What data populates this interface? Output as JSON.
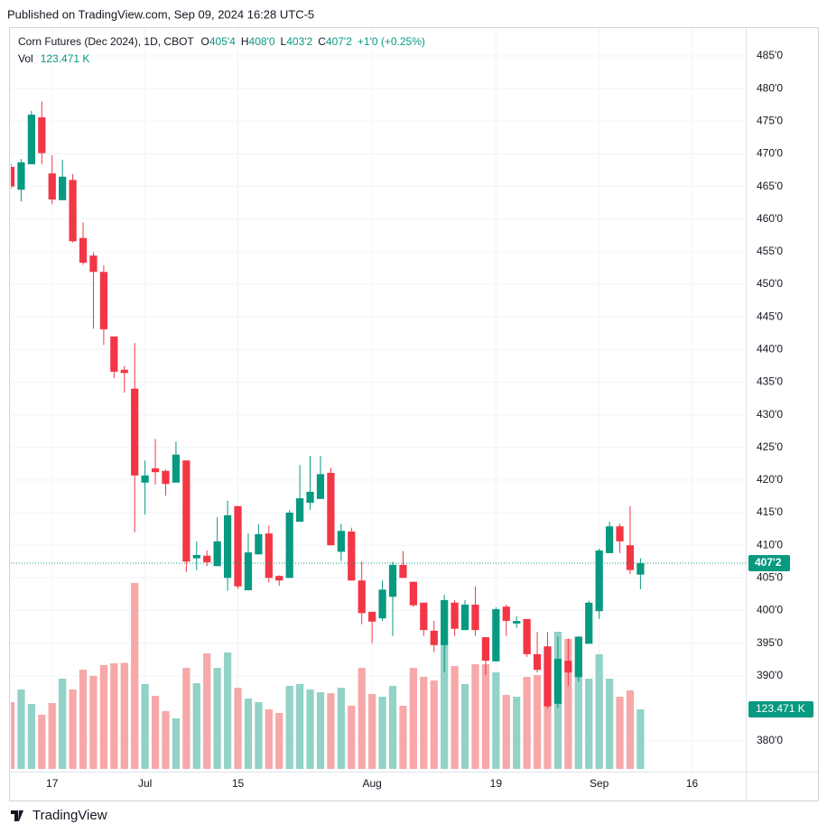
{
  "header": {
    "published": "Published on TradingView.com, Sep 09, 2024 16:28 UTC-5"
  },
  "footer": {
    "brand": "TradingView"
  },
  "chart_data": {
    "type": "candlestick",
    "title": "Corn Futures (Dec 2024), 1D, CBOT",
    "legend": {
      "o": "O",
      "open": "405'4",
      "h": "H",
      "high": "408'0",
      "l": "L",
      "low": "403'2",
      "c": "C",
      "close": "407'2",
      "change": "+1'0 (+0.25%)",
      "vol": "Vol",
      "volume": "123.471 K"
    },
    "up_color": "#089981",
    "down_color": "#f23645",
    "volume_up_color": "#92d2c7",
    "volume_down_color": "#f7a8a8",
    "open": [
      468.0,
      464.5,
      468.4,
      475.6,
      467.0,
      462.9,
      466.0,
      457.1,
      454.4,
      451.9,
      442.0,
      436.9,
      434.0,
      419.6,
      421.8,
      421.4,
      419.6,
      423.0,
      408.0,
      408.4,
      406.8,
      405.0,
      416.0,
      403.1,
      408.6,
      411.8,
      405.3,
      405.0,
      413.6,
      416.5,
      417.1,
      421.1,
      409.0,
      412.1,
      404.6,
      399.8,
      398.8,
      402.1,
      407.0,
      404.4,
      401.2,
      396.9,
      394.7,
      401.2,
      397.0,
      400.9,
      395.9,
      392.2,
      400.6,
      398.0,
      398.7,
      393.3,
      394.5,
      385.7,
      392.3,
      389.8,
      394.9,
      399.9,
      408.8,
      412.9,
      410.0,
      405.5
    ],
    "high": [
      468.5,
      469.2,
      476.6,
      478.0,
      469.8,
      469.1,
      466.9,
      459.5,
      454.9,
      452.9,
      442.0,
      437.5,
      441.0,
      423.0,
      426.3,
      421.6,
      425.9,
      423.0,
      410.6,
      409.2,
      414.3,
      416.8,
      416.0,
      411.8,
      413.2,
      413.0,
      405.4,
      415.4,
      422.3,
      423.7,
      423.7,
      421.9,
      413.3,
      412.7,
      407.5,
      399.8,
      404.6,
      407.5,
      409.1,
      404.4,
      401.2,
      398.4,
      402.4,
      401.6,
      401.6,
      403.7,
      395.9,
      400.5,
      400.9,
      399.1,
      398.7,
      396.7,
      396.7,
      396.0,
      395.7,
      396.0,
      401.5,
      409.5,
      413.6,
      413.3,
      416.0,
      408.0
    ],
    "low": [
      464.6,
      462.7,
      468.4,
      468.4,
      462.3,
      462.9,
      456.4,
      453.0,
      443.2,
      440.7,
      435.6,
      433.4,
      412.0,
      414.7,
      419.3,
      417.6,
      419.6,
      405.9,
      406.2,
      406.8,
      406.8,
      403.0,
      403.3,
      403.1,
      408.6,
      404.3,
      403.8,
      405.0,
      413.6,
      415.4,
      417.1,
      410.0,
      407.6,
      404.6,
      397.9,
      395.0,
      398.4,
      396.1,
      405.0,
      400.6,
      396.1,
      393.6,
      390.5,
      396.1,
      397.0,
      396.1,
      390.1,
      392.2,
      396.1,
      397.3,
      392.9,
      390.5,
      385.0,
      385.0,
      388.4,
      389.1,
      394.9,
      398.7,
      408.8,
      408.8,
      405.6,
      403.25
    ],
    "close": [
      465.0,
      468.7,
      476.0,
      470.1,
      463.0,
      466.5,
      456.6,
      453.3,
      451.9,
      443.1,
      436.6,
      436.4,
      420.7,
      420.7,
      421.2,
      419.4,
      423.9,
      407.5,
      408.5,
      407.4,
      410.6,
      414.6,
      403.7,
      408.9,
      411.7,
      405.0,
      404.6,
      415.0,
      417.2,
      418.2,
      420.9,
      410.0,
      412.2,
      404.6,
      399.6,
      398.3,
      403.2,
      407.0,
      405.0,
      400.8,
      397.0,
      394.7,
      401.6,
      397.2,
      400.9,
      397.0,
      392.3,
      400.2,
      398.4,
      398.4,
      393.3,
      390.9,
      385.3,
      392.6,
      390.5,
      396.0,
      401.2,
      409.2,
      412.9,
      410.6,
      406.2,
      407.25
    ],
    "volume": [
      138.4,
      164.6,
      134.7,
      112.3,
      136.6,
      187.1,
      164.6,
      205.8,
      192.7,
      215.2,
      218.9,
      220.0,
      385.4,
      175.9,
      151.5,
      119.7,
      104.8,
      209.5,
      177.7,
      239.5,
      209.5,
      241.3,
      168.4,
      145.9,
      138.4,
      123.5,
      116.0,
      172.1,
      175.9,
      164.6,
      159.0,
      157.2,
      168.4,
      131.0,
      209.5,
      155.3,
      149.7,
      172.1,
      131.0,
      209.5,
      190.8,
      183.3,
      258.2,
      213.3,
      175.9,
      217.0,
      217.0,
      200.2,
      153.4,
      149.7,
      190.8,
      194.6,
      250.7,
      284.4,
      269.4,
      222.6,
      187.1,
      237.6,
      187.1,
      149.7,
      162.8,
      123.471
    ],
    "last_price": {
      "value": 407.25,
      "label": "407'2"
    },
    "last_volume": {
      "value": 123.471,
      "label": "123.471 K"
    },
    "xlim": [
      0,
      71.2
    ],
    "xticks": [
      {
        "value": 4,
        "label": "17"
      },
      {
        "value": 13,
        "label": "Jul"
      },
      {
        "value": 22,
        "label": "15"
      },
      {
        "value": 35,
        "label": "Aug"
      },
      {
        "value": 47,
        "label": "19"
      },
      {
        "value": 57,
        "label": "Sep"
      },
      {
        "value": 66,
        "label": "16"
      }
    ],
    "ylim": [
      375.3,
      489.43
    ],
    "yticks": [
      {
        "value": 485,
        "label": "485'0"
      },
      {
        "value": 480,
        "label": "480'0"
      },
      {
        "value": 475,
        "label": "475'0"
      },
      {
        "value": 470,
        "label": "470'0"
      },
      {
        "value": 465,
        "label": "465'0"
      },
      {
        "value": 460,
        "label": "460'0"
      },
      {
        "value": 455,
        "label": "455'0"
      },
      {
        "value": 450,
        "label": "450'0"
      },
      {
        "value": 445,
        "label": "445'0"
      },
      {
        "value": 440,
        "label": "440'0"
      },
      {
        "value": 435,
        "label": "435'0"
      },
      {
        "value": 430,
        "label": "430'0"
      },
      {
        "value": 425,
        "label": "425'0"
      },
      {
        "value": 420,
        "label": "420'0"
      },
      {
        "value": 415,
        "label": "415'0"
      },
      {
        "value": 410,
        "label": "410'0"
      },
      {
        "value": 405,
        "label": "405'0"
      },
      {
        "value": 400,
        "label": "400'0"
      },
      {
        "value": 395,
        "label": "395'0"
      },
      {
        "value": 390,
        "label": "390'0"
      },
      {
        "value": 380,
        "label": "380'0"
      }
    ],
    "grid": true
  }
}
